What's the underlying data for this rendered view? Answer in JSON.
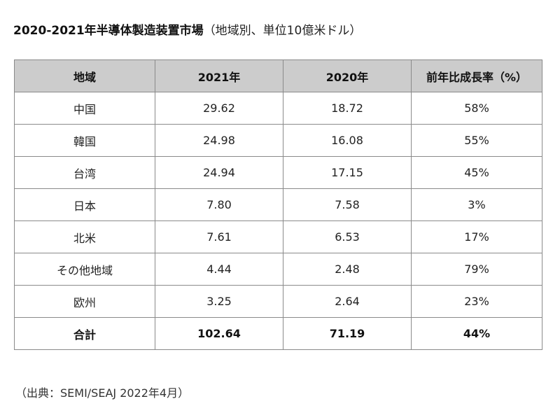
{
  "title": "2020-2021年半導体製造装置市場",
  "subtitle": "（地域別、単位10億米ドル）",
  "source": "（出典：SEMI/SEAJ 2022年4月）",
  "chart_data": {
    "type": "table",
    "title": "2020-2021年半導体製造装置市場",
    "columns": [
      "地域",
      "2021年",
      "2020年",
      "前年比成長率（%）"
    ],
    "rows": [
      [
        "中国",
        "29.62",
        "18.72",
        "58%"
      ],
      [
        "韓国",
        "24.98",
        "16.08",
        "55%"
      ],
      [
        "台湾",
        "24.94",
        "17.15",
        "45%"
      ],
      [
        "日本",
        "7.80",
        "7.58",
        "3%"
      ],
      [
        "北米",
        "7.61",
        "6.53",
        "17%"
      ],
      [
        "その他地域",
        "4.44",
        "2.48",
        "79%"
      ],
      [
        "欧州",
        "3.25",
        "2.64",
        "23%"
      ]
    ],
    "total": [
      "合計",
      "102.64",
      "71.19",
      "44%"
    ],
    "colors": {
      "header_background": "#cccccc",
      "border": "#8a8a8a"
    }
  }
}
